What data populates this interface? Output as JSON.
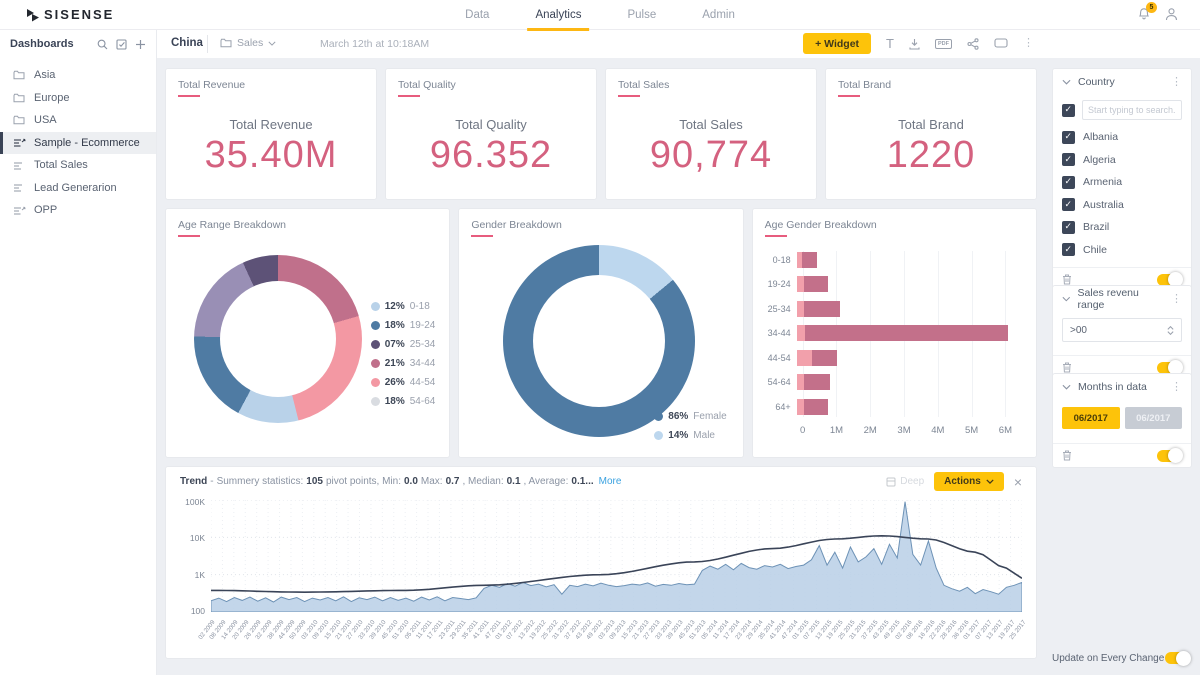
{
  "colors": {
    "accent_yellow": "#fdc30a",
    "kpi_pink": "#d4617f",
    "title_underline": "#e75c7e",
    "navy": "#3a4356",
    "steel_blue": "#4f7ba3",
    "light_blue": "#bdd7ee"
  },
  "topnav": {
    "logo": "SISENSE",
    "tabs": [
      {
        "label": "Data",
        "active": false
      },
      {
        "label": "Analytics",
        "active": true
      },
      {
        "label": "Pulse",
        "active": false
      },
      {
        "label": "Admin",
        "active": false
      }
    ],
    "notification_count": "5"
  },
  "toolbar": {
    "panel_title": "Dashboards",
    "dashboard_title": "China",
    "folder_label": "Sales",
    "timestamp": "March 12th at 10:18AM",
    "add_widget_label": "+ Widget"
  },
  "sidebar": {
    "items": [
      {
        "label": "Asia",
        "icon": "folder",
        "selected": false
      },
      {
        "label": "Europe",
        "icon": "folder",
        "selected": false
      },
      {
        "label": "USA",
        "icon": "folder",
        "selected": false
      },
      {
        "label": "Sample - Ecommerce",
        "icon": "dashboard-shared",
        "selected": true
      },
      {
        "label": "Total Sales",
        "icon": "dashboard",
        "selected": false
      },
      {
        "label": "Lead Generarion",
        "icon": "dashboard",
        "selected": false
      },
      {
        "label": "OPP",
        "icon": "dashboard-shared",
        "selected": false
      }
    ]
  },
  "kpis": [
    {
      "title": "Total Revenue",
      "label": "Total Revenue",
      "value": "35.40M"
    },
    {
      "title": "Total Quality",
      "label": "Total Quality",
      "value": "96.352"
    },
    {
      "title": "Total Sales",
      "label": "Total Sales",
      "value": "90,774"
    },
    {
      "title": "Total Brand",
      "label": "Total Brand",
      "value": "1220"
    }
  ],
  "trend_header": {
    "title": "Trend",
    "dash": "-",
    "stats_label": "Summery statistics:",
    "points": "105",
    "t1": "pivot points, Min:",
    "min": "0.0",
    "t2": "Max:",
    "max": "0.7",
    "t3": ", Median:",
    "median": "0.1",
    "t4": ", Average:",
    "avg": "0.1...",
    "more_link": "More",
    "ghost_label": "Deep",
    "actions_label": "Actions",
    "close": "×"
  },
  "filters": {
    "country": {
      "title": "Country",
      "search_placeholder": "Start typing to search...",
      "options": [
        "Albania",
        "Algeria",
        "Armenia",
        "Australia",
        "Brazil",
        "Chile"
      ],
      "all_checked": true
    },
    "sales_range": {
      "title": "Sales revenu range",
      "value": ">00"
    },
    "months": {
      "title": "Months in data",
      "active_value": "06/2017",
      "inactive_value": "06/2017"
    },
    "update_label": "Update on Every Change"
  },
  "chart_data": [
    {
      "type": "pie",
      "variant": "donut",
      "title": "Age Range Breakdown",
      "legend_position": "right",
      "slices": [
        {
          "label": "0-18",
          "pct": 12,
          "pct_label": "12%",
          "color": "#b9d2e9"
        },
        {
          "label": "19-24",
          "pct": 18,
          "pct_label": "18%",
          "color": "#4f7ba3"
        },
        {
          "label": "25-34",
          "pct": 7,
          "pct_label": "07%",
          "color": "#5d5277"
        },
        {
          "label": "34-44",
          "pct": 21,
          "pct_label": "21%",
          "color": "#c0708b"
        },
        {
          "label": "44-54",
          "pct": 26,
          "pct_label": "26%",
          "color": "#f398a3"
        },
        {
          "label": "54-64",
          "pct": 18,
          "pct_label": "18%",
          "color": "#998fb5",
          "legend_color": "#d9dce1"
        }
      ],
      "draw_order": [
        3,
        4,
        0,
        1,
        5,
        2
      ]
    },
    {
      "type": "pie",
      "variant": "donut",
      "title": "Gender Breakdown",
      "legend_position": "bottom-right",
      "slices": [
        {
          "label": "Female",
          "pct": 86,
          "pct_label": "86%",
          "color": "#4f7ba3"
        },
        {
          "label": "Male",
          "pct": 14,
          "pct_label": "14%",
          "color": "#bdd7ee"
        }
      ],
      "draw_order": [
        1,
        0
      ]
    },
    {
      "type": "bar",
      "orientation": "horizontal",
      "stacked": true,
      "title": "Age Gender Breakdown",
      "categories": [
        "0-18",
        "19-24",
        "25-34",
        "34-44",
        "44-54",
        "54-64",
        "64+"
      ],
      "series": [
        {
          "name": "segment-light",
          "color": "#f2a0ab",
          "values": [
            0.15,
            0.2,
            0.2,
            0.25,
            0.45,
            0.2,
            0.2
          ]
        },
        {
          "name": "segment-dark",
          "color": "#c3708a",
          "values": [
            0.45,
            0.7,
            1.05,
            5.85,
            0.7,
            0.75,
            0.7
          ]
        }
      ],
      "x_ticks": [
        "0",
        "1M",
        "2M",
        "3M",
        "4M",
        "5M",
        "6M"
      ],
      "x_tick_values": [
        0,
        1,
        2,
        3,
        4,
        5,
        6
      ],
      "xmax": 6.55,
      "unit": "M"
    },
    {
      "type": "area",
      "title": "Trend",
      "y_scale": "log",
      "ylim": [
        100,
        100000
      ],
      "y_ticks": [
        "100K",
        "10K",
        "1K",
        "100"
      ],
      "area_color": "#b9cfe6",
      "line_color": "#6d92b6",
      "trend_color": "#3a4458",
      "x_labels": [
        "02 2009",
        "08 2009",
        "14 2009",
        "20 2009",
        "26 2009",
        "32 2009",
        "38 2009",
        "44 2009",
        "50 2009",
        "03 2010",
        "09 2010",
        "15 2010",
        "21 2010",
        "27 2010",
        "33 2010",
        "39 2010",
        "45 2010",
        "51 2010",
        "05 2011",
        "11 2011",
        "17 2011",
        "23 2011",
        "29 2011",
        "35 2011",
        "41 2011",
        "47 2011",
        "01 2012",
        "07 2012",
        "13 2012",
        "19 2012",
        "25 2012",
        "31 2012",
        "37 2012",
        "43 2012",
        "49 2012",
        "03 2013",
        "09 2013",
        "15 2013",
        "21 2013",
        "27 2013",
        "33 2013",
        "39 2013",
        "45 2013",
        "51 2013",
        "05 2014",
        "11 2014",
        "17 2014",
        "23 2014",
        "29 2014",
        "35 2014",
        "41 2014",
        "47 2014",
        "01 2015",
        "07 2015",
        "13 2015",
        "19 2015",
        "25 2015",
        "31 2015",
        "37 2015",
        "43 2015",
        "49 2015",
        "02 2016",
        "08 2016",
        "16 2016",
        "22 2016",
        "28 2016",
        "36 2016",
        "01 2017",
        "07 2017",
        "13 2017",
        "19 2017",
        "25 2017"
      ],
      "values": [
        200,
        235,
        190,
        245,
        205,
        250,
        195,
        240,
        185,
        250,
        215,
        245,
        190,
        235,
        210,
        245,
        200,
        255,
        190,
        240,
        215,
        250,
        200,
        245,
        205,
        235,
        195,
        250,
        210,
        255,
        200,
        245,
        230,
        215,
        240,
        430,
        520,
        460,
        580,
        490,
        620,
        510,
        560,
        470,
        540,
        300,
        520,
        480,
        560,
        500,
        590,
        520,
        480,
        510,
        560,
        530,
        600,
        490,
        550,
        520,
        580,
        540,
        560,
        1300,
        1700,
        1400,
        1900,
        1350,
        2000,
        1550,
        1400,
        1750,
        1600,
        1900,
        1450,
        1650,
        1800,
        2500,
        6000,
        1800,
        4000,
        1500,
        5500,
        2200,
        3000,
        5000,
        1900,
        6500,
        2800,
        90000,
        3500,
        1800,
        8000,
        1500,
        520,
        420,
        360,
        460,
        310,
        400,
        350,
        300,
        460,
        520,
        620
      ],
      "trend_line_anchors": [
        [
          0,
          380
        ],
        [
          12,
          340
        ],
        [
          25,
          380
        ],
        [
          35,
          520
        ],
        [
          50,
          1000
        ],
        [
          62,
          2200
        ],
        [
          72,
          5000
        ],
        [
          80,
          9000
        ],
        [
          86,
          11000
        ],
        [
          92,
          9000
        ],
        [
          98,
          4000
        ],
        [
          102,
          1500
        ],
        [
          104,
          800
        ]
      ]
    }
  ]
}
